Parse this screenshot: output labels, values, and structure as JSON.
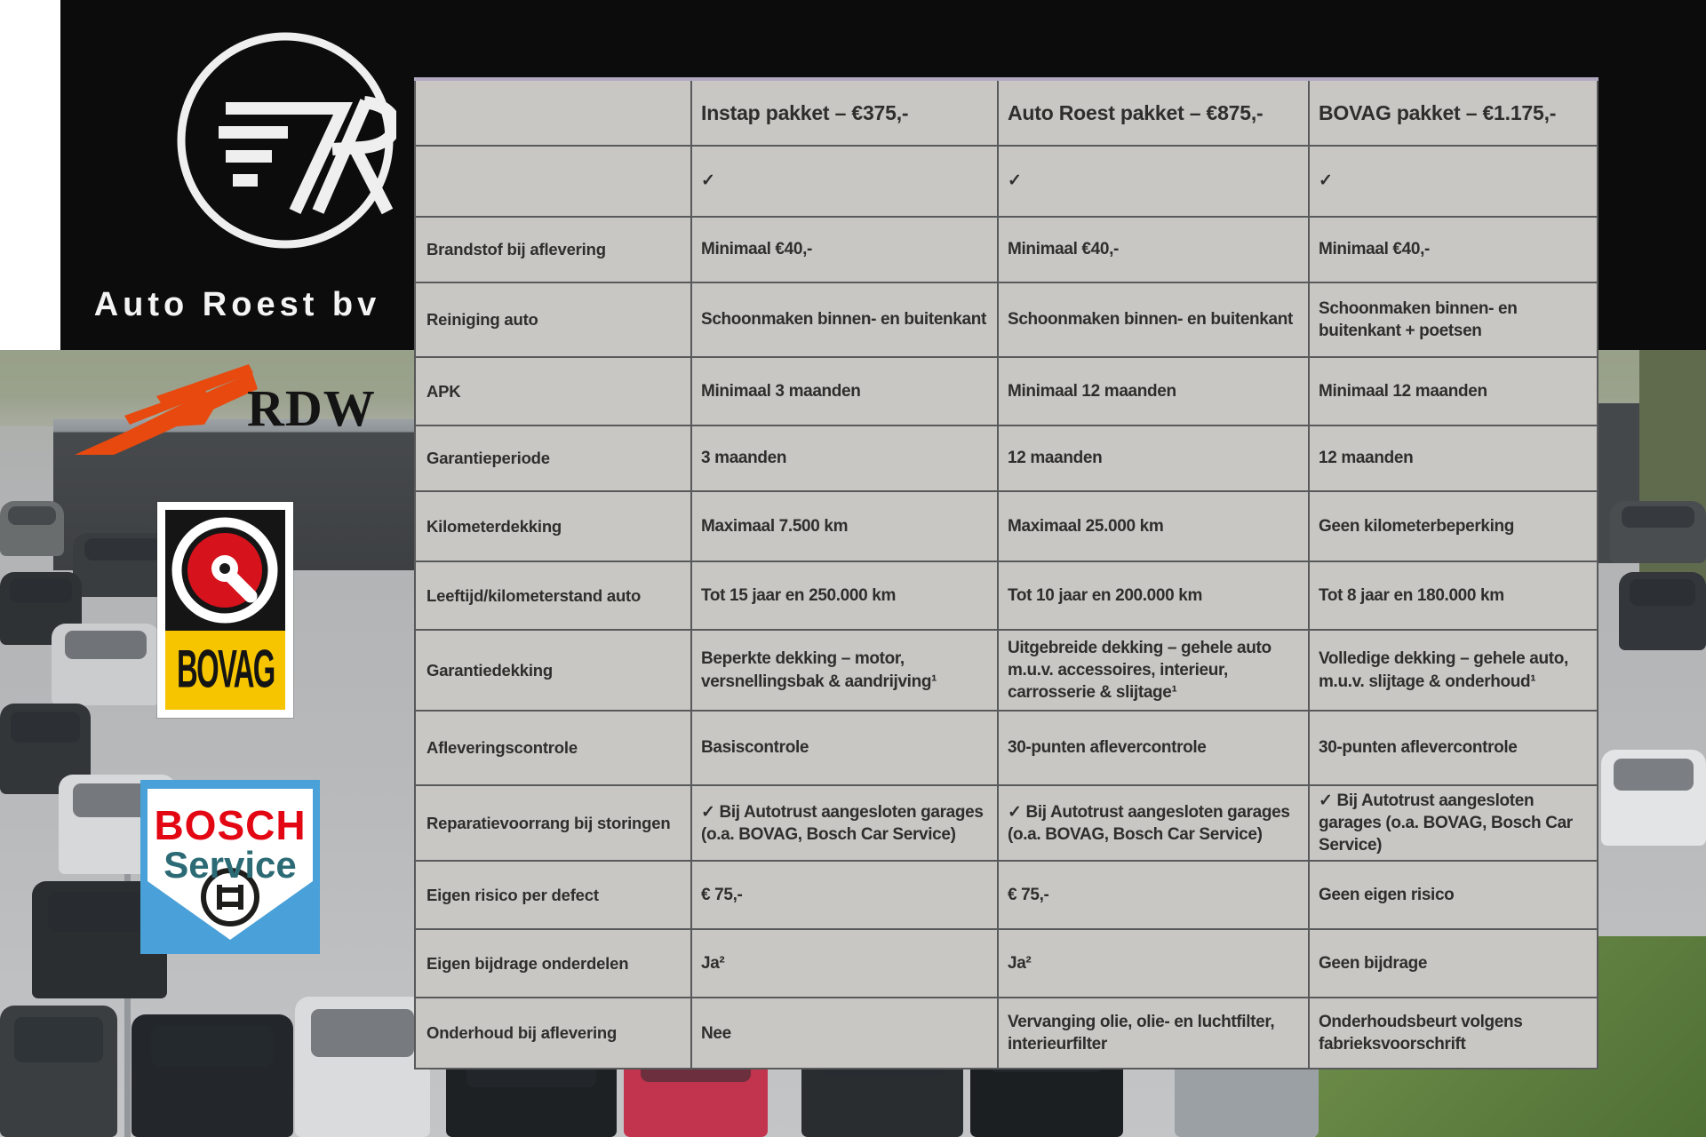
{
  "brand": {
    "name": "Auto Roest bv"
  },
  "partner_logos": {
    "rdw": "RDW",
    "bovag": "BOVAG",
    "bosch_line1": "BOSCH",
    "bosch_line2": "Service"
  },
  "table": {
    "header": [
      "",
      "Instap pakket – €375,-",
      "Auto Roest pakket – €875,-",
      "BOVAG pakket – €1.175,-"
    ],
    "rows": [
      {
        "label": "",
        "cells": [
          "✓",
          "✓",
          "✓"
        ]
      },
      {
        "label": "Brandstof bij aflevering",
        "cells": [
          "Minimaal €40,-",
          "Minimaal €40,-",
          "Minimaal €40,-"
        ]
      },
      {
        "label": "Reiniging auto",
        "cells": [
          "Schoonmaken binnen- en buitenkant",
          "Schoonmaken binnen- en buitenkant",
          "Schoonmaken binnen- en buitenkant + poetsen"
        ]
      },
      {
        "label": "APK",
        "cells": [
          "Minimaal 3 maanden",
          "Minimaal 12 maanden",
          "Minimaal 12 maanden"
        ]
      },
      {
        "label": "Garantieperiode",
        "cells": [
          "3 maanden",
          "12 maanden",
          "12 maanden"
        ]
      },
      {
        "label": "Kilometerdekking",
        "cells": [
          "Maximaal 7.500 km",
          "Maximaal 25.000 km",
          "Geen kilometerbeperking"
        ]
      },
      {
        "label": "Leeftijd/kilometerstand auto",
        "cells": [
          "Tot 15 jaar en 250.000 km",
          "Tot 10 jaar en 200.000 km",
          "Tot 8 jaar en 180.000 km"
        ]
      },
      {
        "label": "Garantiedekking",
        "cells": [
          "Beperkte dekking – motor, versnellingsbak & aandrijving¹",
          "Uitgebreide dekking – gehele auto m.u.v. accessoires, interieur, carrosserie & slijtage¹",
          "Volledige dekking – gehele auto, m.u.v. slijtage & onderhoud¹"
        ]
      },
      {
        "label": "Afleveringscontrole",
        "cells": [
          "Basiscontrole",
          "30-punten aflevercontrole",
          "30-punten aflevercontrole"
        ]
      },
      {
        "label": "Reparatievoorrang bij storingen",
        "cells": [
          "✓ Bij Autotrust aangesloten garages (o.a. BOVAG, Bosch Car Service)",
          "✓ Bij Autotrust aangesloten garages (o.a. BOVAG, Bosch Car Service)",
          "✓ Bij Autotrust aangesloten garages (o.a. BOVAG, Bosch Car Service)"
        ]
      },
      {
        "label": "Eigen risico per defect",
        "cells": [
          "€ 75,-",
          "€ 75,-",
          "Geen eigen risico"
        ]
      },
      {
        "label": "Eigen bijdrage onderdelen",
        "cells": [
          "Ja²",
          "Ja²",
          "Geen bijdrage"
        ]
      },
      {
        "label": "Onderhoud bij aflevering",
        "cells": [
          "Nee",
          "Vervanging olie, olie- en luchtfilter, interieurfilter",
          "Onderhoudsbeurt volgens fabrieksvoorschrift"
        ]
      }
    ]
  },
  "colors": {
    "rdw_orange": "#e8490f",
    "bovag_red": "#d6121c",
    "bovag_yellow": "#f6c500",
    "bosch_blue": "#4aa0d8",
    "bosch_red": "#e30613",
    "bosch_teal": "#2c6b75",
    "table_background": "#c9c7c4",
    "table_border": "#58595a",
    "table_top_border": "#b2a9c1",
    "banner_black": "#0c0c0c"
  }
}
